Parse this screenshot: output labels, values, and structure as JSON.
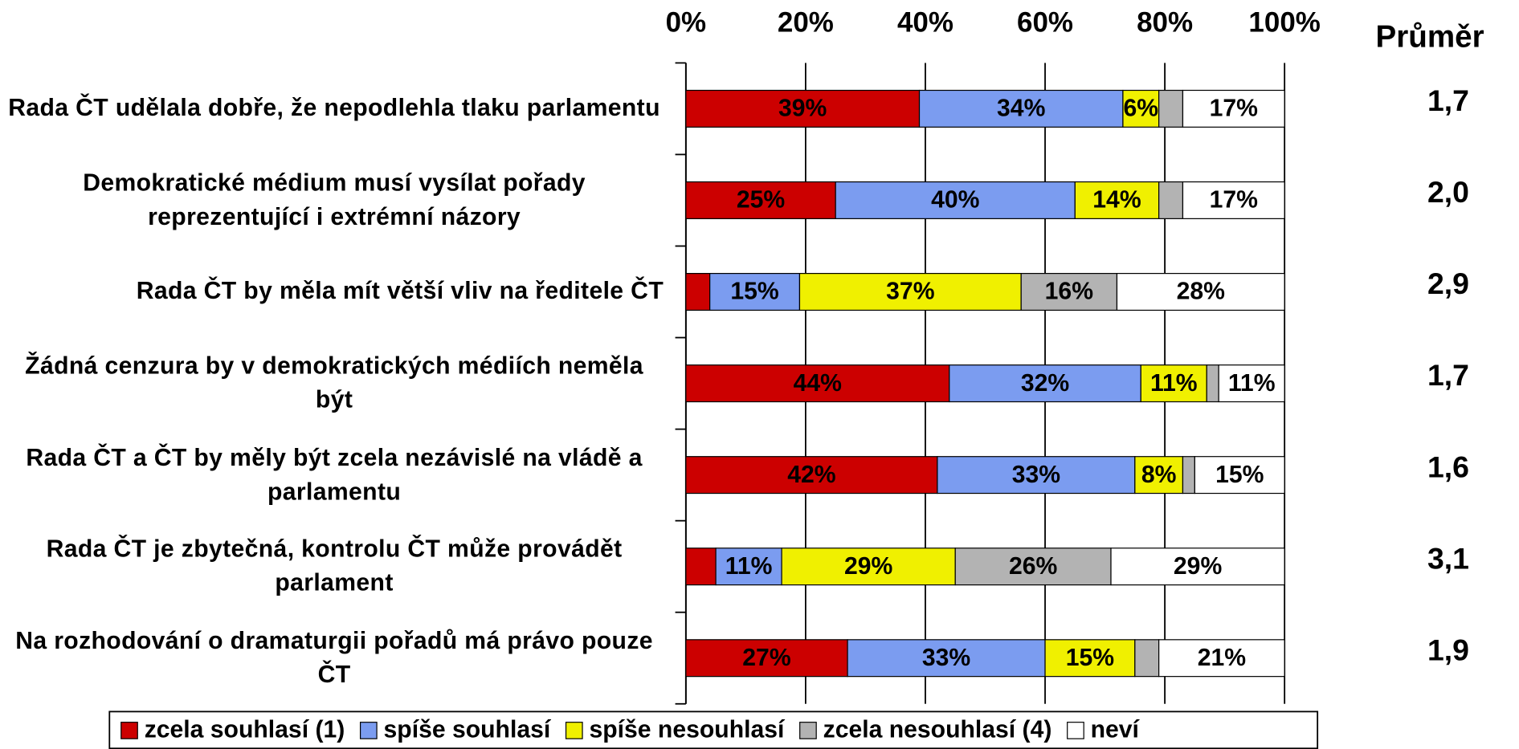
{
  "chart_data": {
    "type": "stacked_bar_horizontal",
    "categories": [
      "Rada ČT udělala dobře, že nepodlehla tlaku parlamentu",
      "Demokratické médium musí vysílat pořady reprezentující i extrémní názory",
      "Rada ČT by měla mít větší vliv na ředitele ČT",
      "Žádná cenzura by v demokratických médiích neměla být",
      "Rada ČT  a ČT by měly být zcela nezávislé na vládě a parlamentu",
      "Rada ČT je zbytečná, kontrolu ČT může provádět parlament",
      "Na rozhodování o dramaturgii pořadů má právo pouze ČT"
    ],
    "series": [
      {
        "name": "zcela souhlasí (1)",
        "color": "#cc0000",
        "values": [
          39,
          25,
          4,
          44,
          42,
          5,
          27
        ],
        "value_labels": [
          "39%",
          "25%",
          null,
          "44%",
          "42%",
          null,
          "27%"
        ]
      },
      {
        "name": "spíše souhlasí",
        "color": "#7b9cf0",
        "values": [
          34,
          40,
          15,
          32,
          33,
          11,
          33
        ],
        "value_labels": [
          "34%",
          "40%",
          "15%",
          "32%",
          "33%",
          "11%",
          "33%"
        ]
      },
      {
        "name": "spíše nesouhlasí",
        "color": "#f0f000",
        "values": [
          6,
          14,
          37,
          11,
          8,
          29,
          15
        ],
        "value_labels": [
          "6%",
          "14%",
          "37%",
          "11%",
          "8%",
          "29%",
          "15%"
        ]
      },
      {
        "name": "zcela nesouhlasí (4)",
        "color": "#b3b3b3",
        "values": [
          4,
          4,
          16,
          2,
          2,
          26,
          4
        ],
        "value_labels": [
          null,
          null,
          "16%",
          null,
          null,
          "26%",
          null
        ]
      },
      {
        "name": "neví",
        "color": "#ffffff",
        "values": [
          17,
          17,
          28,
          11,
          15,
          29,
          21
        ],
        "value_labels": [
          "17%",
          "17%",
          "28%",
          "11%",
          "15%",
          "29%",
          "21%"
        ]
      }
    ],
    "xlim": [
      0,
      100
    ],
    "xticks": [
      {
        "value": 0,
        "label": "0%"
      },
      {
        "value": 20,
        "label": "20%"
      },
      {
        "value": 40,
        "label": "40%"
      },
      {
        "value": 60,
        "label": "60%"
      },
      {
        "value": 80,
        "label": "80%"
      },
      {
        "value": 100,
        "label": "100%"
      }
    ],
    "grid": true,
    "legend": "bottom",
    "means": {
      "title": "Průměr",
      "values": [
        1.7,
        2.0,
        2.9,
        1.7,
        1.6,
        3.1,
        1.9
      ],
      "value_labels": [
        "1,7",
        "2,0",
        "2,9",
        "1,7",
        "1,6",
        "3,1",
        "1,9"
      ]
    }
  }
}
